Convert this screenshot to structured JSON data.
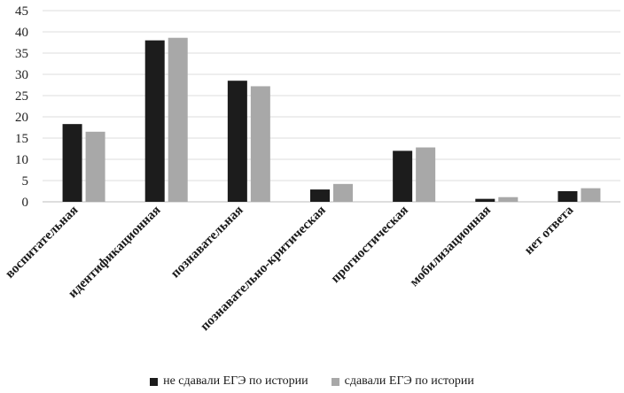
{
  "chart_data": {
    "type": "bar",
    "categories": [
      "воспитательная",
      "идентификационная",
      "познавательная",
      "познавательно-критическая",
      "прогностическая",
      "мобилизационная",
      "нет ответа"
    ],
    "series": [
      {
        "name": "не сдавали ЕГЭ по истории",
        "color": "#1c1c1c",
        "values": [
          18.3,
          38.0,
          28.5,
          2.9,
          12.0,
          0.7,
          2.5
        ]
      },
      {
        "name": "сдавали ЕГЭ по истории",
        "color": "#a8a8a8",
        "values": [
          16.5,
          38.6,
          27.2,
          4.2,
          12.8,
          1.1,
          3.2
        ]
      }
    ],
    "yticks": [
      "0",
      "5",
      "10",
      "15",
      "20",
      "25",
      "30",
      "35",
      "40",
      "45"
    ],
    "ylim": [
      0,
      45
    ],
    "grid": true,
    "legend_position": "bottom"
  }
}
